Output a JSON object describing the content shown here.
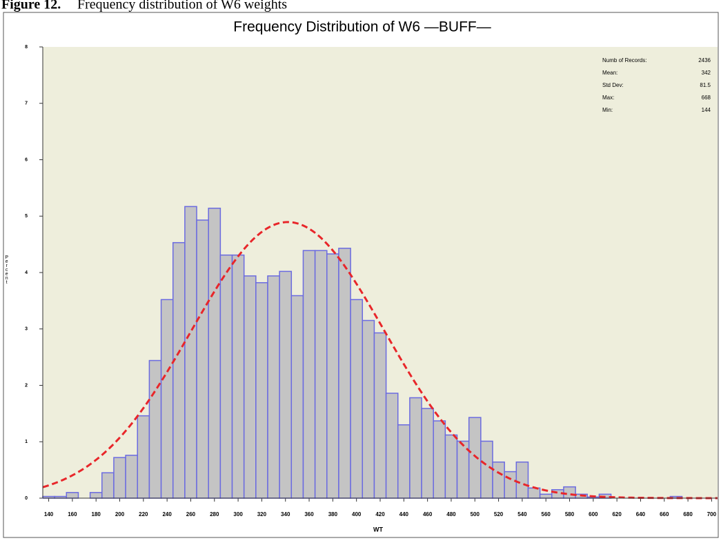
{
  "figure": {
    "label": "Figure 12.",
    "caption": "Frequency distribution of W6 weights"
  },
  "chart_data": {
    "type": "histogram",
    "title": "Frequency Distribution of W6 —BUFF—",
    "x_label": "WT",
    "y_label": "Percent",
    "bins": [
      135,
      145,
      155,
      165,
      175,
      185,
      195,
      205,
      215,
      225,
      235,
      245,
      255,
      265,
      275,
      285,
      295,
      305,
      315,
      325,
      335,
      345,
      355,
      365,
      375,
      385,
      395,
      405,
      415,
      425,
      435,
      445,
      455,
      465,
      475,
      485,
      495,
      505,
      515,
      525,
      535,
      545,
      555,
      565,
      575,
      585,
      595,
      605,
      615,
      625,
      635,
      645,
      655,
      665,
      675,
      685,
      695,
      705
    ],
    "values": [
      0.03,
      0.03,
      0.1,
      0,
      0.1,
      0.45,
      0.72,
      0.76,
      1.46,
      2.44,
      3.52,
      4.53,
      5.17,
      4.93,
      5.14,
      4.31,
      4.31,
      3.94,
      3.82,
      3.94,
      4.02,
      3.59,
      4.39,
      4.39,
      4.33,
      4.43,
      3.52,
      3.15,
      2.93,
      1.86,
      1.3,
      1.78,
      1.59,
      1.37,
      1.12,
      1.01,
      1.43,
      1.01,
      0.64,
      0.47,
      0.64,
      0.18,
      0.07,
      0.15,
      0.2,
      0.07,
      0.02,
      0.07,
      0,
      0,
      0,
      0,
      0,
      0.03,
      0,
      0,
      0
    ],
    "color": "#c4c4c4",
    "edge_color": "#6a6ae0",
    "background": "#eeeedc",
    "curve_color": "#e8262a",
    "xlim": [
      135,
      705
    ],
    "ylim": [
      0,
      8
    ],
    "xticks": [
      140,
      160,
      180,
      200,
      220,
      240,
      260,
      280,
      300,
      320,
      340,
      360,
      380,
      400,
      420,
      440,
      460,
      480,
      500,
      520,
      540,
      560,
      580,
      600,
      620,
      640,
      660,
      680,
      700
    ],
    "yticks": [
      0,
      1,
      2,
      3,
      4,
      5,
      6,
      7,
      8
    ],
    "stats": [
      {
        "label": "Numb of Records:",
        "value": 2436
      },
      {
        "label": "Mean:",
        "value": 342
      },
      {
        "label": "Std Dev:",
        "value": 81.5
      },
      {
        "label": "Max:",
        "value": 668
      },
      {
        "label": "Min:",
        "value": 144
      }
    ]
  }
}
